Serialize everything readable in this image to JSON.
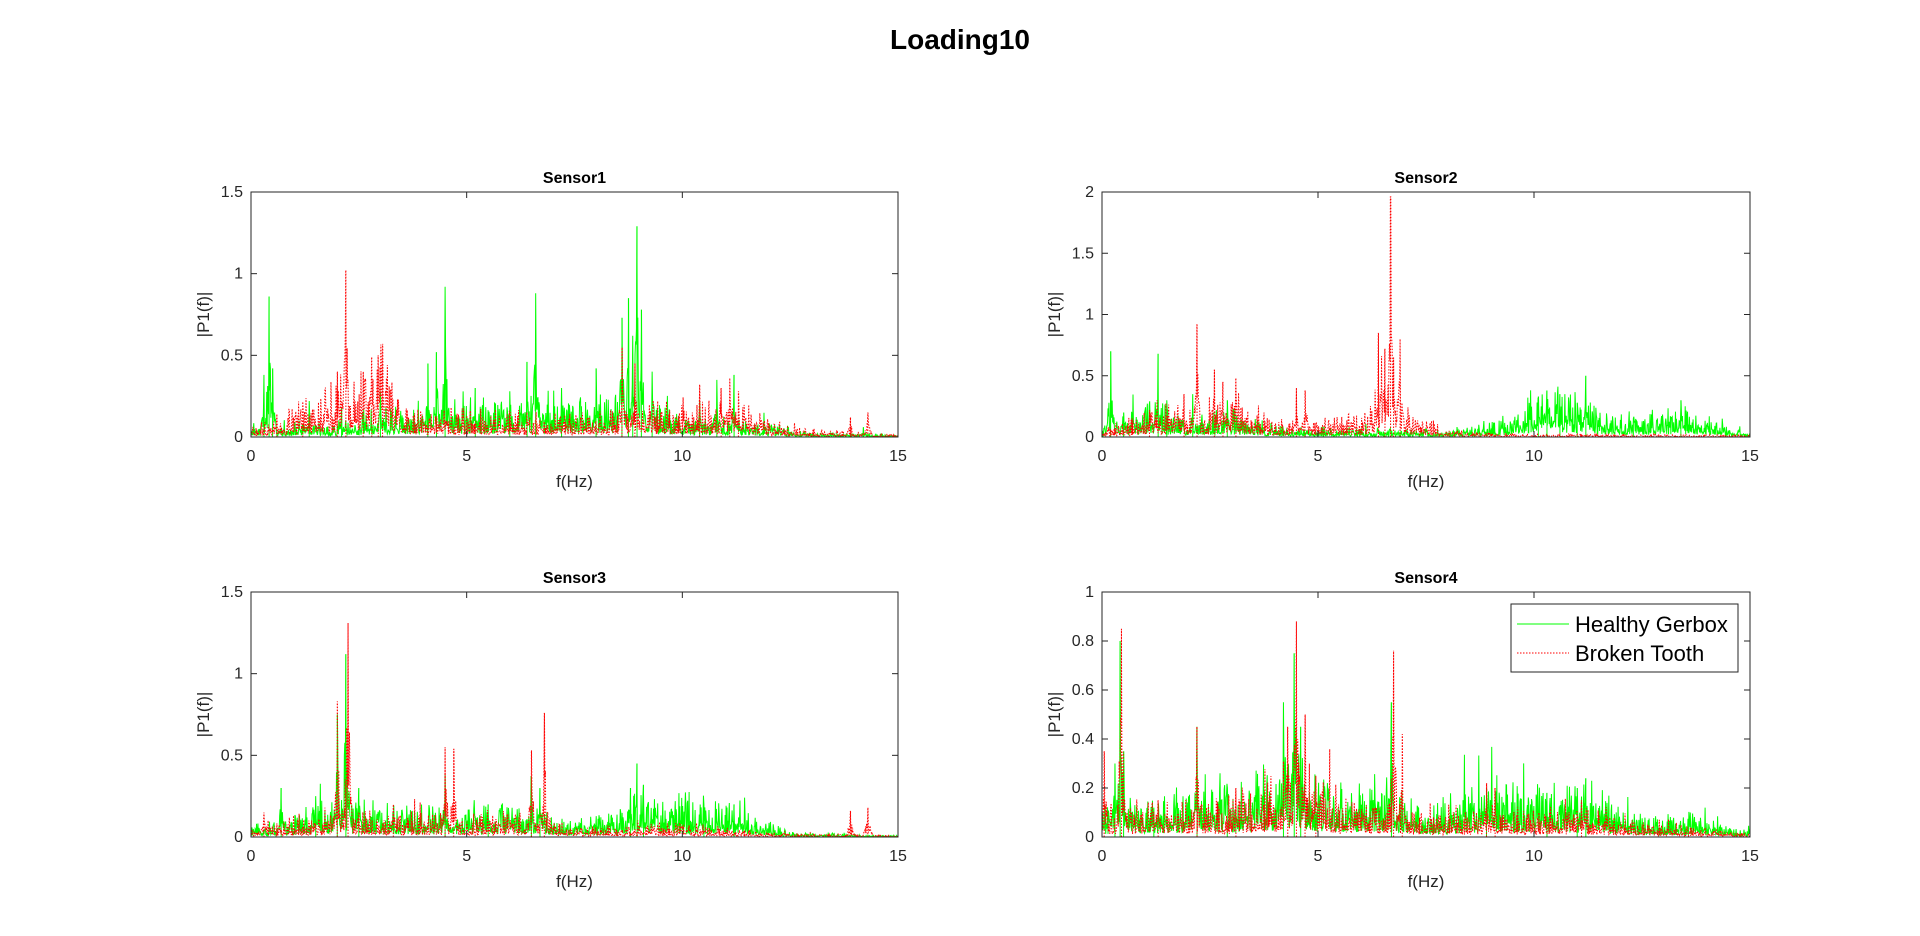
{
  "figure": {
    "title": "Loading10"
  },
  "colors": {
    "healthy": "#00ff00",
    "broken": "#ff0000",
    "axis": "#262626"
  },
  "legend": {
    "placement": "top-right",
    "panel": 3,
    "entries": [
      {
        "label": "Healthy Gerbox",
        "style": "solid",
        "color": "#00ff00"
      },
      {
        "label": "Broken Tooth",
        "style": "dotted",
        "color": "#ff0000"
      }
    ]
  },
  "chart_data": [
    {
      "type": "line",
      "title": "Sensor1",
      "xlabel": "f(Hz)",
      "ylabel": "|P1(f)|",
      "xlim": [
        0,
        15
      ],
      "ylim": [
        0,
        1.5
      ],
      "xticks": [
        "0",
        "5",
        "10",
        "15"
      ],
      "yticks": [
        "0",
        "0.5",
        "1",
        "1.5"
      ],
      "grid": false,
      "series": [
        {
          "name": "Healthy Gerbox",
          "noise": [
            [
              0,
              0.03
            ],
            [
              2,
              0.03
            ],
            [
              3.5,
              0.07
            ],
            [
              8.5,
              0.09
            ],
            [
              10,
              0.05
            ],
            [
              12,
              0.03
            ],
            [
              13,
              0.01
            ],
            [
              15,
              0.005
            ]
          ],
          "peaks": [
            [
              0.3,
              0.38
            ],
            [
              0.42,
              0.86
            ],
            [
              0.5,
              0.42
            ],
            [
              1.35,
              0.22
            ],
            [
              2.1,
              0.18
            ],
            [
              3.0,
              0.28
            ],
            [
              4.1,
              0.45
            ],
            [
              4.3,
              0.52
            ],
            [
              4.5,
              0.92
            ],
            [
              5.2,
              0.3
            ],
            [
              6.0,
              0.28
            ],
            [
              6.4,
              0.46
            ],
            [
              6.6,
              0.88
            ],
            [
              7.2,
              0.3
            ],
            [
              8.0,
              0.42
            ],
            [
              8.6,
              0.73
            ],
            [
              8.75,
              0.85
            ],
            [
              8.85,
              0.62
            ],
            [
              8.95,
              1.29
            ],
            [
              9.05,
              0.78
            ],
            [
              9.3,
              0.4
            ],
            [
              10.4,
              0.22
            ],
            [
              10.8,
              0.35
            ],
            [
              11.2,
              0.38
            ],
            [
              14.2,
              0.06
            ]
          ]
        },
        {
          "name": "Broken Tooth",
          "noise": [
            [
              0,
              0.02
            ],
            [
              1,
              0.06
            ],
            [
              2.5,
              0.15
            ],
            [
              3,
              0.2
            ],
            [
              3.5,
              0.08
            ],
            [
              4,
              0.05
            ],
            [
              8,
              0.05
            ],
            [
              10,
              0.08
            ],
            [
              11.5,
              0.06
            ],
            [
              12.5,
              0.02
            ],
            [
              15,
              0.005
            ]
          ],
          "peaks": [
            [
              0.6,
              0.14
            ],
            [
              1.2,
              0.14
            ],
            [
              2.0,
              0.4
            ],
            [
              2.2,
              1.02
            ],
            [
              2.6,
              0.4
            ],
            [
              2.8,
              0.49
            ],
            [
              2.95,
              0.5
            ],
            [
              3.05,
              0.57
            ],
            [
              8.6,
              0.55
            ],
            [
              8.9,
              0.45
            ],
            [
              10.4,
              0.32
            ],
            [
              10.9,
              0.3
            ],
            [
              11.1,
              0.36
            ],
            [
              11.3,
              0.28
            ],
            [
              13.9,
              0.12
            ],
            [
              14.3,
              0.15
            ]
          ]
        }
      ]
    },
    {
      "type": "line",
      "title": "Sensor2",
      "xlabel": "f(Hz)",
      "ylabel": "|P1(f)|",
      "xlim": [
        0,
        15
      ],
      "ylim": [
        0,
        2
      ],
      "xticks": [
        "0",
        "5",
        "10",
        "15"
      ],
      "yticks": [
        "0",
        "0.5",
        "1",
        "1.5",
        "2"
      ],
      "grid": false,
      "series": [
        {
          "name": "Healthy Gerbox",
          "noise": [
            [
              0,
              0.03
            ],
            [
              1.2,
              0.1
            ],
            [
              2,
              0.05
            ],
            [
              3,
              0.08
            ],
            [
              4,
              0.03
            ],
            [
              8,
              0.02
            ],
            [
              9.5,
              0.06
            ],
            [
              10,
              0.15
            ],
            [
              11.2,
              0.12
            ],
            [
              12,
              0.06
            ],
            [
              13.5,
              0.09
            ],
            [
              14.5,
              0.04
            ],
            [
              15,
              0.01
            ]
          ],
          "peaks": [
            [
              0.2,
              0.7
            ],
            [
              0.5,
              0.2
            ],
            [
              1.3,
              0.68
            ],
            [
              1.5,
              0.3
            ],
            [
              2.1,
              0.35
            ],
            [
              2.9,
              0.3
            ],
            [
              10.1,
              0.33
            ],
            [
              10.3,
              0.38
            ],
            [
              10.6,
              0.35
            ],
            [
              11.2,
              0.5
            ],
            [
              11.0,
              0.28
            ],
            [
              13.4,
              0.3
            ],
            [
              12.3,
              0.15
            ]
          ]
        },
        {
          "name": "Broken Tooth",
          "noise": [
            [
              0,
              0.02
            ],
            [
              1.5,
              0.1
            ],
            [
              2.5,
              0.08
            ],
            [
              3,
              0.12
            ],
            [
              4,
              0.05
            ],
            [
              6,
              0.06
            ],
            [
              6.5,
              0.15
            ],
            [
              7,
              0.08
            ],
            [
              8,
              0.02
            ],
            [
              9,
              0.01
            ],
            [
              15,
              0.005
            ]
          ],
          "peaks": [
            [
              1.1,
              0.22
            ],
            [
              1.9,
              0.35
            ],
            [
              2.2,
              0.92
            ],
            [
              2.6,
              0.55
            ],
            [
              2.8,
              0.45
            ],
            [
              3.1,
              0.48
            ],
            [
              4.5,
              0.4
            ],
            [
              4.7,
              0.38
            ],
            [
              6.4,
              0.85
            ],
            [
              6.55,
              0.72
            ],
            [
              6.68,
              1.96
            ],
            [
              6.75,
              0.65
            ],
            [
              6.9,
              0.8
            ]
          ]
        }
      ]
    },
    {
      "type": "line",
      "title": "Sensor3",
      "xlabel": "f(Hz)",
      "ylabel": "|P1(f)|",
      "xlim": [
        0,
        15
      ],
      "ylim": [
        0,
        1.5
      ],
      "xticks": [
        "0",
        "5",
        "10",
        "15"
      ],
      "yticks": [
        "0",
        "0.5",
        "1",
        "1.5"
      ],
      "grid": false,
      "series": [
        {
          "name": "Healthy Gerbox",
          "noise": [
            [
              0,
              0.02
            ],
            [
              1,
              0.05
            ],
            [
              2,
              0.08
            ],
            [
              3,
              0.07
            ],
            [
              5,
              0.06
            ],
            [
              6.5,
              0.08
            ],
            [
              7.5,
              0.03
            ],
            [
              8.5,
              0.05
            ],
            [
              9,
              0.1
            ],
            [
              10,
              0.08
            ],
            [
              11.5,
              0.06
            ],
            [
              12.5,
              0.01
            ],
            [
              15,
              0.003
            ]
          ],
          "peaks": [
            [
              0.7,
              0.3
            ],
            [
              1.5,
              0.25
            ],
            [
              2.0,
              0.75
            ],
            [
              2.2,
              1.12
            ],
            [
              2.5,
              0.3
            ],
            [
              4.5,
              0.38
            ],
            [
              5.5,
              0.2
            ],
            [
              6.5,
              0.32
            ],
            [
              6.7,
              0.3
            ],
            [
              8.8,
              0.3
            ],
            [
              8.95,
              0.45
            ],
            [
              9.1,
              0.32
            ],
            [
              10.5,
              0.2
            ],
            [
              11.2,
              0.2
            ]
          ]
        },
        {
          "name": "Broken Tooth",
          "noise": [
            [
              0,
              0.02
            ],
            [
              2,
              0.06
            ],
            [
              3,
              0.05
            ],
            [
              5,
              0.04
            ],
            [
              6.5,
              0.05
            ],
            [
              7.5,
              0.02
            ],
            [
              10,
              0.03
            ],
            [
              12,
              0.01
            ],
            [
              15,
              0.003
            ]
          ],
          "peaks": [
            [
              0.3,
              0.15
            ],
            [
              2.0,
              0.83
            ],
            [
              2.25,
              1.31
            ],
            [
              3.3,
              0.2
            ],
            [
              4.5,
              0.55
            ],
            [
              4.7,
              0.54
            ],
            [
              6.5,
              0.53
            ],
            [
              6.8,
              0.76
            ],
            [
              13.9,
              0.16
            ],
            [
              14.3,
              0.18
            ]
          ]
        }
      ]
    },
    {
      "type": "line",
      "title": "Sensor4",
      "xlabel": "f(Hz)",
      "ylabel": "|P1(f)|",
      "xlim": [
        0,
        15
      ],
      "ylim": [
        0,
        1
      ],
      "xticks": [
        "0",
        "5",
        "10",
        "15"
      ],
      "yticks": [
        "0",
        "0.2",
        "0.4",
        "0.6",
        "0.8",
        "1"
      ],
      "grid": false,
      "series": [
        {
          "name": "Healthy Gerbox",
          "noise": [
            [
              0,
              0.05
            ],
            [
              1,
              0.06
            ],
            [
              3,
              0.07
            ],
            [
              4,
              0.1
            ],
            [
              4.5,
              0.14
            ],
            [
              5,
              0.08
            ],
            [
              6.5,
              0.08
            ],
            [
              7.5,
              0.04
            ],
            [
              9,
              0.08
            ],
            [
              10.5,
              0.07
            ],
            [
              11.5,
              0.06
            ],
            [
              12.5,
              0.03
            ],
            [
              14,
              0.03
            ],
            [
              15,
              0.01
            ]
          ],
          "peaks": [
            [
              0.3,
              0.3
            ],
            [
              0.42,
              0.8
            ],
            [
              0.5,
              0.35
            ],
            [
              1.2,
              0.12
            ],
            [
              2.2,
              0.45
            ],
            [
              2.9,
              0.2
            ],
            [
              4.2,
              0.55
            ],
            [
              4.45,
              0.75
            ],
            [
              4.6,
              0.45
            ],
            [
              6.7,
              0.55
            ],
            [
              8.9,
              0.2
            ],
            [
              10.3,
              0.18
            ],
            [
              11.2,
              0.24
            ],
            [
              11.0,
              0.2
            ]
          ]
        },
        {
          "name": "Broken Tooth",
          "noise": [
            [
              0,
              0.04
            ],
            [
              1,
              0.05
            ],
            [
              3,
              0.05
            ],
            [
              4.3,
              0.1
            ],
            [
              4.7,
              0.1
            ],
            [
              5.5,
              0.06
            ],
            [
              7,
              0.04
            ],
            [
              9,
              0.04
            ],
            [
              11,
              0.04
            ],
            [
              12,
              0.03
            ],
            [
              13,
              0.02
            ],
            [
              15,
              0.005
            ]
          ],
          "peaks": [
            [
              0.05,
              0.35
            ],
            [
              0.45,
              0.85
            ],
            [
              1.3,
              0.15
            ],
            [
              2.2,
              0.45
            ],
            [
              3.1,
              0.2
            ],
            [
              4.3,
              0.45
            ],
            [
              4.5,
              0.88
            ],
            [
              4.7,
              0.5
            ],
            [
              4.95,
              0.25
            ],
            [
              6.75,
              0.76
            ],
            [
              6.95,
              0.42
            ],
            [
              8.9,
              0.22
            ],
            [
              9.1,
              0.2
            ],
            [
              11.1,
              0.15
            ]
          ]
        }
      ]
    }
  ]
}
